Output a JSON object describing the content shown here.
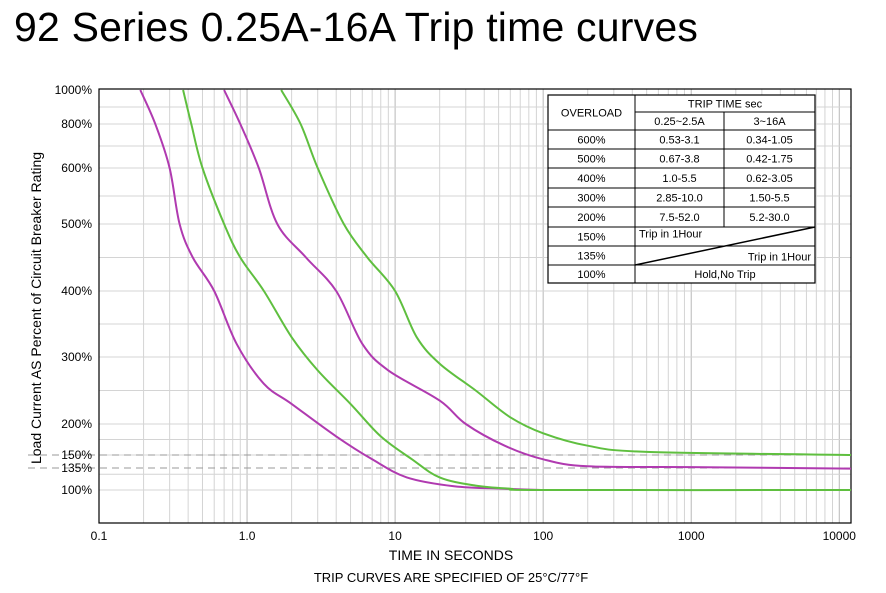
{
  "title": "92 Series 0.25A-16A Trip time curves",
  "chart_data": {
    "type": "line",
    "title": "92 Series 0.25A-16A Trip time curves",
    "xlabel": "TIME IN SECONDS",
    "ylabel": "Load Current AS Percent of Circuit Breaker Rating",
    "note": "TRIP CURVES ARE SPECIFIED OF 25°C/77°F",
    "x_scale": "log",
    "xlim": [
      0.1,
      12000
    ],
    "ylim": [
      80,
      1000
    ],
    "x_ticks": [
      {
        "value": 0.1,
        "label": "0.1"
      },
      {
        "value": 1,
        "label": "1.0"
      },
      {
        "value": 10,
        "label": "10"
      },
      {
        "value": 100,
        "label": "100"
      },
      {
        "value": 1000,
        "label": "1000"
      },
      {
        "value": 10000,
        "label": "10000"
      }
    ],
    "y_ticks": [
      {
        "value": 100,
        "label": "100%"
      },
      {
        "value": 135,
        "label": "135%"
      },
      {
        "value": 150,
        "label": "150%"
      },
      {
        "value": 200,
        "label": "200%"
      },
      {
        "value": 300,
        "label": "300%"
      },
      {
        "value": 400,
        "label": "400%"
      },
      {
        "value": 500,
        "label": "500%"
      },
      {
        "value": 600,
        "label": "600%"
      },
      {
        "value": 800,
        "label": "800%"
      },
      {
        "value": 1000,
        "label": "1000%"
      }
    ],
    "dashed_levels": [
      135,
      150
    ],
    "grid": true,
    "series": [
      {
        "color": "#b03ab0",
        "points": [
          [
            0.19,
            1000
          ],
          [
            0.24,
            800
          ],
          [
            0.3,
            600
          ],
          [
            0.35,
            500
          ],
          [
            0.43,
            450
          ],
          [
            0.6,
            400
          ],
          [
            0.85,
            320
          ],
          [
            1.3,
            260
          ],
          [
            2.0,
            230
          ],
          [
            4.0,
            180
          ],
          [
            7.0,
            145
          ],
          [
            12.0,
            120
          ],
          [
            25.0,
            106
          ],
          [
            55.0,
            102
          ],
          [
            100.0,
            100
          ]
        ]
      },
      {
        "color": "#5fbf3f",
        "points": [
          [
            0.37,
            1000
          ],
          [
            0.42,
            800
          ],
          [
            0.5,
            600
          ],
          [
            0.7,
            500
          ],
          [
            0.9,
            450
          ],
          [
            1.3,
            400
          ],
          [
            2.0,
            330
          ],
          [
            3.0,
            280
          ],
          [
            5.0,
            230
          ],
          [
            8.0,
            180
          ],
          [
            13.0,
            145
          ],
          [
            20.0,
            120
          ],
          [
            35.0,
            107
          ],
          [
            60.0,
            102
          ],
          [
            100.0,
            100
          ],
          [
            12000.0,
            100
          ]
        ]
      },
      {
        "color": "#b03ab0",
        "points": [
          [
            0.7,
            1000
          ],
          [
            0.9,
            800
          ],
          [
            1.2,
            600
          ],
          [
            1.6,
            500
          ],
          [
            2.5,
            450
          ],
          [
            4.0,
            400
          ],
          [
            6.0,
            320
          ],
          [
            9.0,
            280
          ],
          [
            20.0,
            235
          ],
          [
            30.0,
            200
          ],
          [
            55.0,
            165
          ],
          [
            100.0,
            145
          ],
          [
            200.0,
            137
          ],
          [
            1000.0,
            136
          ],
          [
            12000.0,
            134
          ]
        ]
      },
      {
        "color": "#5fbf3f",
        "points": [
          [
            1.7,
            1000
          ],
          [
            2.3,
            800
          ],
          [
            3.0,
            600
          ],
          [
            4.5,
            500
          ],
          [
            6.5,
            450
          ],
          [
            10.0,
            400
          ],
          [
            14.0,
            330
          ],
          [
            20.0,
            290
          ],
          [
            35.0,
            250
          ],
          [
            60.0,
            210
          ],
          [
            100.0,
            185
          ],
          [
            200.0,
            165
          ],
          [
            500.0,
            155
          ],
          [
            12000.0,
            150
          ]
        ]
      }
    ],
    "table": {
      "header": {
        "overload": "OVERLOAD",
        "trip_time": "TRIP TIME sec",
        "range_a": "0.25~2.5A",
        "range_b": "3~16A"
      },
      "rows": [
        {
          "overload": "600%",
          "a": "0.53-3.1",
          "b": "0.34-1.05"
        },
        {
          "overload": "500%",
          "a": "0.67-3.8",
          "b": "0.42-1.75"
        },
        {
          "overload": "400%",
          "a": "1.0-5.5",
          "b": "0.62-3.05"
        },
        {
          "overload": "300%",
          "a": "2.85-10.0",
          "b": "1.50-5.5"
        },
        {
          "overload": "200%",
          "a": "7.5-52.0",
          "b": "5.2-30.0"
        }
      ],
      "diag_rows": [
        {
          "overload": "150%",
          "text": "Trip in 1Hour"
        },
        {
          "overload": "135%",
          "text": "Trip in 1Hour"
        }
      ],
      "last_row": {
        "overload": "100%",
        "text": "Hold,No Trip"
      }
    }
  }
}
